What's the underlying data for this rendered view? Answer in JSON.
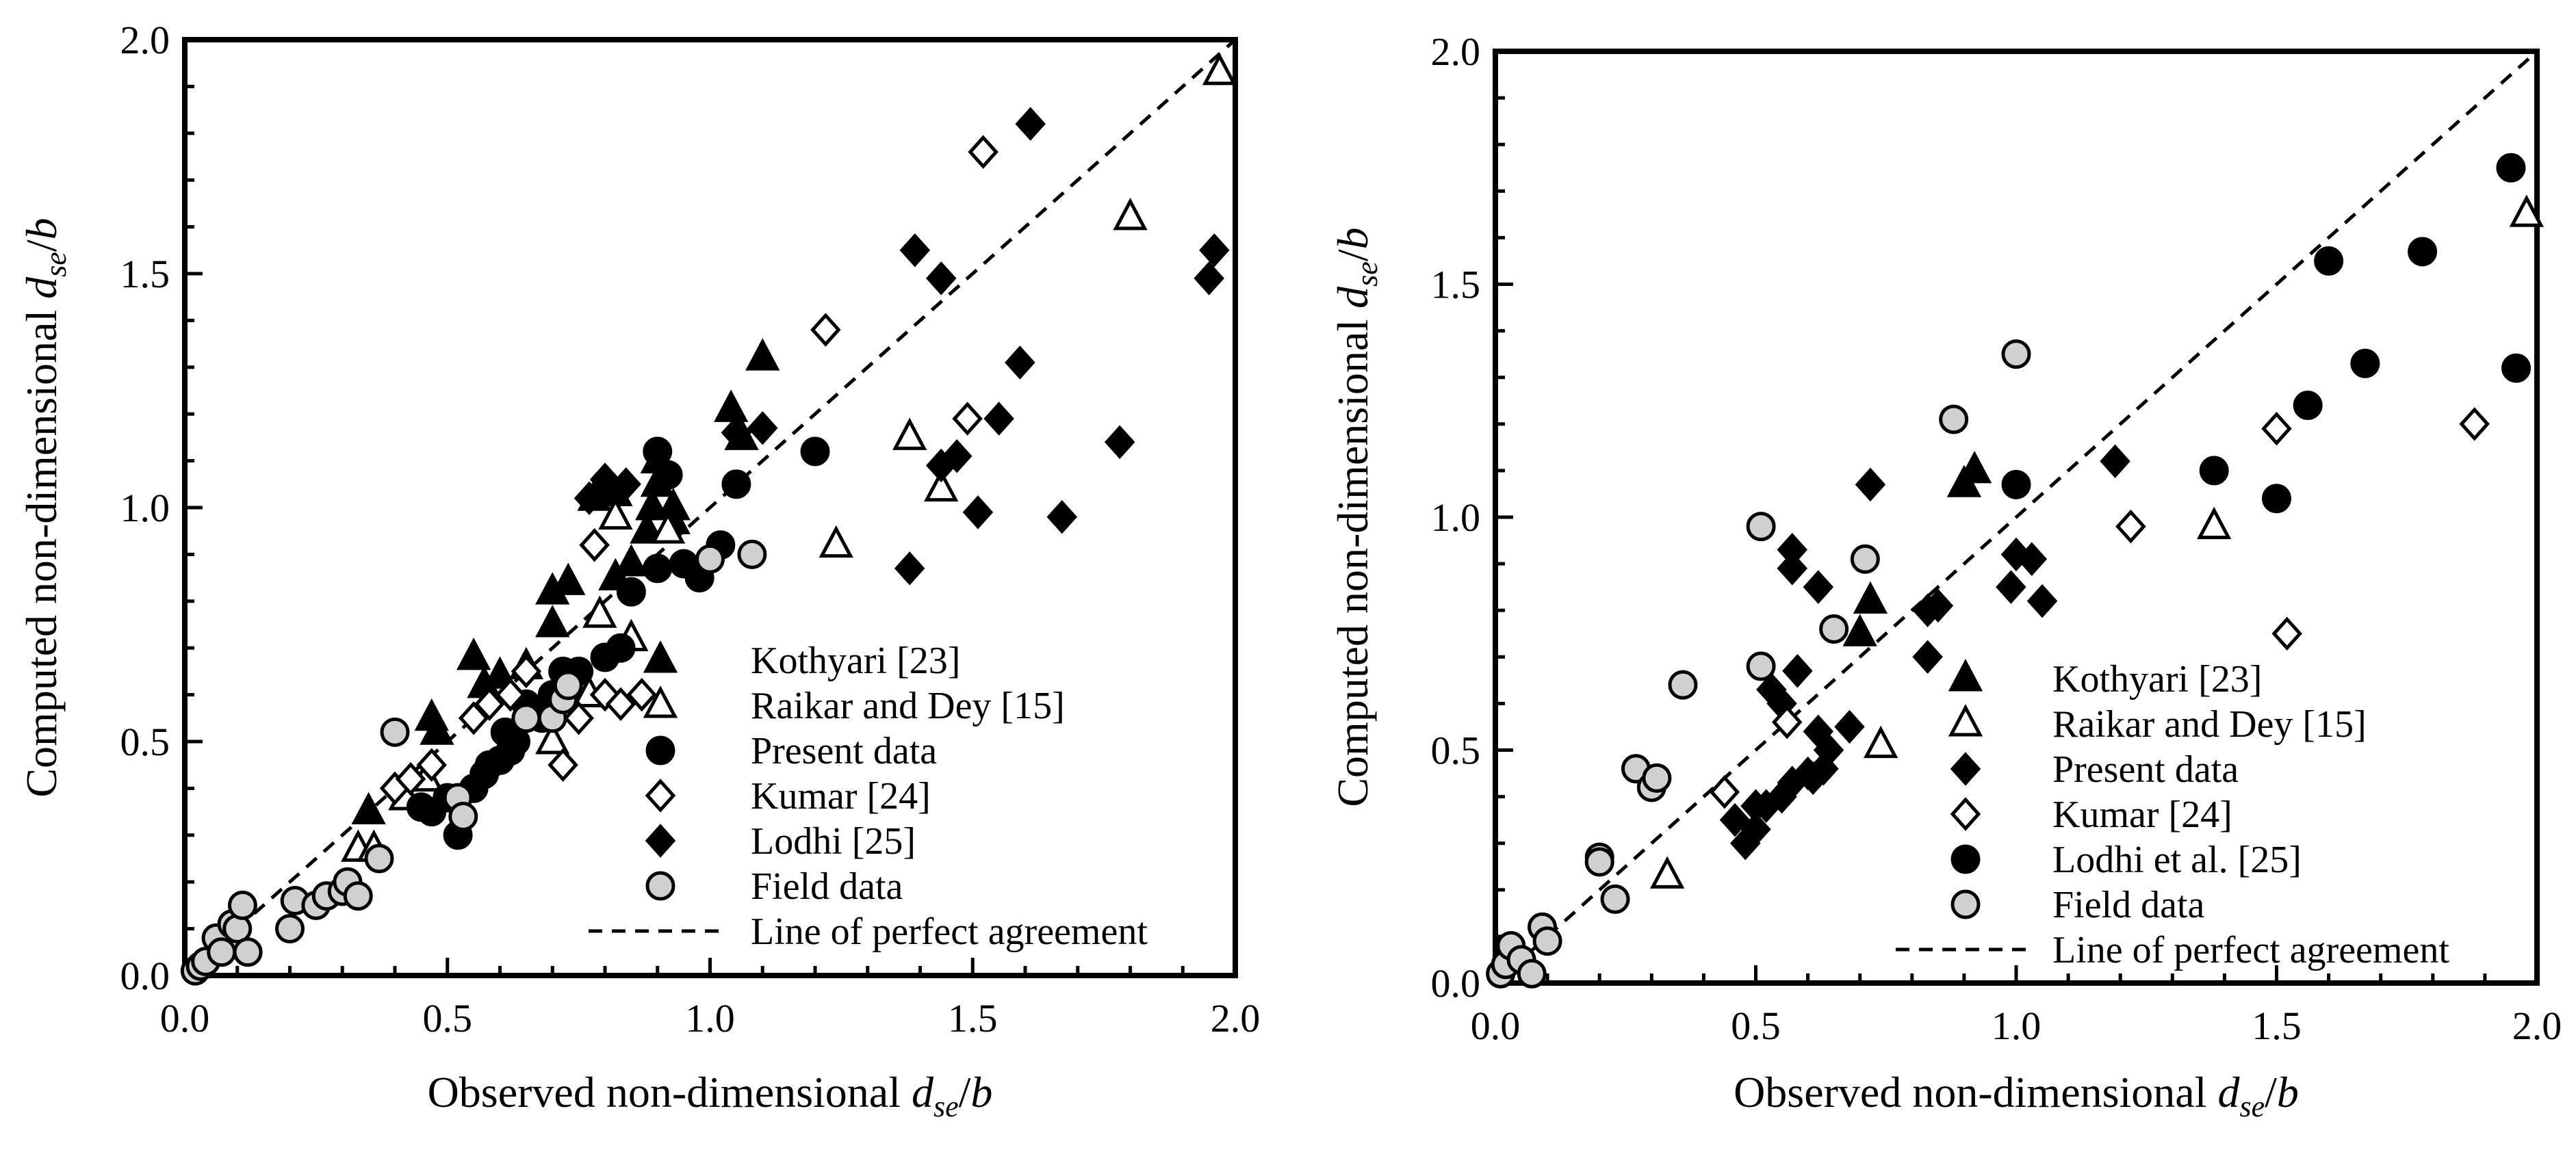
{
  "colors": {
    "black": "#000000",
    "field_gray": "#d0d0d0",
    "open_white": "#ffffff"
  },
  "chart_data": [
    {
      "type": "scatter",
      "title": "",
      "xlabel": "Observed  non-dimensional d_se/b",
      "ylabel": "Computed  non-dimensional d_se/b",
      "xlabel_parts": {
        "prefix": "Observed  non-dimensional ",
        "var": "d",
        "sub": "se",
        "suffix": "/b"
      },
      "ylabel_parts": {
        "prefix": "Computed  non-dimensional ",
        "var": "d",
        "sub": "se",
        "suffix": "/b"
      },
      "xlim": [
        0,
        2
      ],
      "ylim": [
        0,
        2
      ],
      "xticks": [
        "0.0",
        "0.5",
        "1.0",
        "1.5",
        "2.0"
      ],
      "yticks": [
        "0.0",
        "0.5",
        "1.0",
        "1.5",
        "2.0"
      ],
      "legend_position": "bottom-right",
      "reference_line": {
        "label": "Line of perfect agreement",
        "x": [
          0,
          2
        ],
        "y": [
          0,
          2
        ],
        "style": "dashed"
      },
      "series": [
        {
          "name": "Kothyari [23]",
          "marker": "triangle",
          "fill": "black",
          "points": [
            [
              0.35,
              0.35
            ],
            [
              0.47,
              0.55
            ],
            [
              0.48,
              0.52
            ],
            [
              0.55,
              0.68
            ],
            [
              0.57,
              0.62
            ],
            [
              0.6,
              0.64
            ],
            [
              0.65,
              0.66
            ],
            [
              0.7,
              0.75
            ],
            [
              0.7,
              0.82
            ],
            [
              0.73,
              0.84
            ],
            [
              0.78,
              1.02
            ],
            [
              0.8,
              1.04
            ],
            [
              0.82,
              1.03
            ],
            [
              0.82,
              0.85
            ],
            [
              0.85,
              0.88
            ],
            [
              0.88,
              0.95
            ],
            [
              0.89,
              1.0
            ],
            [
              0.9,
              1.05
            ],
            [
              0.9,
              1.1
            ],
            [
              0.93,
              0.97
            ],
            [
              0.93,
              1.0
            ],
            [
              1.04,
              1.21
            ],
            [
              1.06,
              1.15
            ],
            [
              1.1,
              1.32
            ]
          ]
        },
        {
          "name": "Raikar and Dey [15]",
          "marker": "triangle",
          "fill": "white",
          "points": [
            [
              0.33,
              0.27
            ],
            [
              0.36,
              0.27
            ],
            [
              0.42,
              0.38
            ],
            [
              0.46,
              0.42
            ],
            [
              0.7,
              0.5
            ],
            [
              0.77,
              0.6
            ],
            [
              0.79,
              0.77
            ],
            [
              0.82,
              0.98
            ],
            [
              0.85,
              0.72
            ],
            [
              0.92,
              0.95
            ],
            [
              1.24,
              0.92
            ],
            [
              1.38,
              1.15
            ],
            [
              1.44,
              1.04
            ],
            [
              1.8,
              1.62
            ],
            [
              1.97,
              1.93
            ]
          ]
        },
        {
          "name": "Present data",
          "marker": "circle",
          "fill": "black",
          "points": [
            [
              0.45,
              0.36
            ],
            [
              0.47,
              0.35
            ],
            [
              0.5,
              0.38
            ],
            [
              0.52,
              0.3
            ],
            [
              0.55,
              0.4
            ],
            [
              0.57,
              0.43
            ],
            [
              0.58,
              0.45
            ],
            [
              0.6,
              0.46
            ],
            [
              0.61,
              0.52
            ],
            [
              0.62,
              0.48
            ],
            [
              0.63,
              0.5
            ],
            [
              0.65,
              0.58
            ],
            [
              0.68,
              0.55
            ],
            [
              0.7,
              0.6
            ],
            [
              0.72,
              0.65
            ],
            [
              0.75,
              0.65
            ],
            [
              0.8,
              0.68
            ],
            [
              0.83,
              0.7
            ],
            [
              0.85,
              0.82
            ],
            [
              0.9,
              1.12
            ],
            [
              0.9,
              0.87
            ],
            [
              0.92,
              1.07
            ],
            [
              0.95,
              0.88
            ],
            [
              0.98,
              0.85
            ],
            [
              1.02,
              0.92
            ],
            [
              1.05,
              1.05
            ],
            [
              1.2,
              1.12
            ]
          ]
        },
        {
          "name": "Kumar [24]",
          "marker": "diamond",
          "fill": "white",
          "points": [
            [
              0.4,
              0.4
            ],
            [
              0.43,
              0.42
            ],
            [
              0.47,
              0.45
            ],
            [
              0.55,
              0.55
            ],
            [
              0.58,
              0.58
            ],
            [
              0.62,
              0.6
            ],
            [
              0.65,
              0.65
            ],
            [
              0.72,
              0.45
            ],
            [
              0.75,
              0.55
            ],
            [
              0.78,
              0.92
            ],
            [
              0.8,
              0.6
            ],
            [
              0.83,
              0.58
            ],
            [
              0.87,
              0.6
            ],
            [
              1.22,
              1.38
            ],
            [
              1.49,
              1.19
            ],
            [
              1.52,
              1.76
            ]
          ]
        },
        {
          "name": "Lodhi [25]",
          "marker": "diamond",
          "fill": "black",
          "points": [
            [
              0.77,
              1.02
            ],
            [
              0.8,
              1.06
            ],
            [
              0.84,
              1.05
            ],
            [
              1.05,
              1.16
            ],
            [
              1.1,
              1.17
            ],
            [
              1.38,
              0.87
            ],
            [
              1.39,
              1.55
            ],
            [
              1.44,
              1.49
            ],
            [
              1.44,
              1.09
            ],
            [
              1.47,
              1.11
            ],
            [
              1.51,
              0.99
            ],
            [
              1.55,
              1.19
            ],
            [
              1.59,
              1.31
            ],
            [
              1.61,
              1.82
            ],
            [
              1.67,
              0.98
            ],
            [
              1.78,
              1.14
            ],
            [
              1.95,
              1.49
            ],
            [
              1.96,
              1.55
            ]
          ]
        },
        {
          "name": "Field data",
          "marker": "circle",
          "fill": "gray",
          "points": [
            [
              0.02,
              0.01
            ],
            [
              0.03,
              0.02
            ],
            [
              0.04,
              0.03
            ],
            [
              0.06,
              0.08
            ],
            [
              0.07,
              0.05
            ],
            [
              0.09,
              0.11
            ],
            [
              0.1,
              0.1
            ],
            [
              0.11,
              0.15
            ],
            [
              0.12,
              0.05
            ],
            [
              0.2,
              0.1
            ],
            [
              0.21,
              0.16
            ],
            [
              0.25,
              0.15
            ],
            [
              0.27,
              0.17
            ],
            [
              0.3,
              0.18
            ],
            [
              0.31,
              0.2
            ],
            [
              0.33,
              0.17
            ],
            [
              0.37,
              0.25
            ],
            [
              0.4,
              0.52
            ],
            [
              0.52,
              0.38
            ],
            [
              0.53,
              0.34
            ],
            [
              0.65,
              0.55
            ],
            [
              0.7,
              0.55
            ],
            [
              0.72,
              0.59
            ],
            [
              0.73,
              0.62
            ],
            [
              1.0,
              0.89
            ],
            [
              1.08,
              0.9
            ]
          ]
        }
      ]
    },
    {
      "type": "scatter",
      "title": "",
      "xlabel": "Observed  non-dimensional d_se/b",
      "ylabel": "Computed  non-dimensional d_se/b",
      "xlabel_parts": {
        "prefix": "Observed  non-dimensional ",
        "var": "d",
        "sub": "se",
        "suffix": "/b"
      },
      "ylabel_parts": {
        "prefix": "Computed  non-dimensional ",
        "var": "d",
        "sub": "se",
        "suffix": "/b"
      },
      "xlim": [
        0,
        2
      ],
      "ylim": [
        0,
        2
      ],
      "xticks": [
        "0.0",
        "0.5",
        "1.0",
        "1.5",
        "2.0"
      ],
      "yticks": [
        "0.0",
        "0.5",
        "1.0",
        "1.5",
        "2.0"
      ],
      "legend_position": "bottom-right",
      "reference_line": {
        "label": "Line of perfect agreement",
        "x": [
          0,
          2
        ],
        "y": [
          0,
          2
        ],
        "style": "dashed"
      },
      "series": [
        {
          "name": "Kothyari [23]",
          "marker": "triangle",
          "fill": "black",
          "points": [
            [
              0.7,
              0.75
            ],
            [
              0.72,
              0.82
            ],
            [
              0.9,
              1.07
            ],
            [
              0.92,
              1.1
            ]
          ]
        },
        {
          "name": "Raikar and Dey [15]",
          "marker": "triangle",
          "fill": "white",
          "points": [
            [
              0.33,
              0.23
            ],
            [
              0.74,
              0.51
            ],
            [
              1.38,
              0.98
            ],
            [
              1.98,
              1.65
            ]
          ]
        },
        {
          "name": "Present data",
          "marker": "diamond",
          "fill": "black",
          "points": [
            [
              0.46,
              0.35
            ],
            [
              0.48,
              0.3
            ],
            [
              0.5,
              0.33
            ],
            [
              0.5,
              0.38
            ],
            [
              0.52,
              0.38
            ],
            [
              0.53,
              0.63
            ],
            [
              0.55,
              0.4
            ],
            [
              0.55,
              0.6
            ],
            [
              0.57,
              0.43
            ],
            [
              0.57,
              0.89
            ],
            [
              0.57,
              0.93
            ],
            [
              0.58,
              0.67
            ],
            [
              0.6,
              0.45
            ],
            [
              0.61,
              0.44
            ],
            [
              0.62,
              0.54
            ],
            [
              0.62,
              0.85
            ],
            [
              0.63,
              0.46
            ],
            [
              0.64,
              0.5
            ],
            [
              0.68,
              0.55
            ],
            [
              0.72,
              1.07
            ],
            [
              0.83,
              0.8
            ],
            [
              0.83,
              0.7
            ],
            [
              0.85,
              0.81
            ],
            [
              0.99,
              0.85
            ],
            [
              1.0,
              0.92
            ],
            [
              1.03,
              0.91
            ],
            [
              1.05,
              0.82
            ],
            [
              1.19,
              1.12
            ]
          ]
        },
        {
          "name": "Kumar [24]",
          "marker": "diamond",
          "fill": "white",
          "points": [
            [
              0.44,
              0.41
            ],
            [
              0.56,
              0.56
            ],
            [
              1.22,
              0.98
            ],
            [
              1.5,
              1.19
            ],
            [
              1.52,
              0.75
            ],
            [
              1.88,
              1.2
            ]
          ]
        },
        {
          "name": "Lodhi et al. [25]",
          "marker": "circle",
          "fill": "black",
          "points": [
            [
              1.0,
              1.07
            ],
            [
              1.38,
              1.1
            ],
            [
              1.5,
              1.04
            ],
            [
              1.56,
              1.24
            ],
            [
              1.6,
              1.55
            ],
            [
              1.67,
              1.33
            ],
            [
              1.78,
              1.57
            ],
            [
              1.95,
              1.75
            ],
            [
              1.96,
              1.32
            ]
          ]
        },
        {
          "name": "Field data",
          "marker": "circle",
          "fill": "gray",
          "points": [
            [
              0.01,
              0.02
            ],
            [
              0.02,
              0.04
            ],
            [
              0.03,
              0.08
            ],
            [
              0.05,
              0.05
            ],
            [
              0.07,
              0.02
            ],
            [
              0.09,
              0.12
            ],
            [
              0.1,
              0.09
            ],
            [
              0.2,
              0.27
            ],
            [
              0.2,
              0.26
            ],
            [
              0.23,
              0.18
            ],
            [
              0.27,
              0.46
            ],
            [
              0.3,
              0.42
            ],
            [
              0.31,
              0.44
            ],
            [
              0.36,
              0.64
            ],
            [
              0.51,
              0.98
            ],
            [
              0.51,
              0.68
            ],
            [
              0.65,
              0.76
            ],
            [
              0.71,
              0.91
            ],
            [
              0.88,
              1.21
            ],
            [
              1.0,
              1.35
            ]
          ]
        }
      ]
    }
  ]
}
